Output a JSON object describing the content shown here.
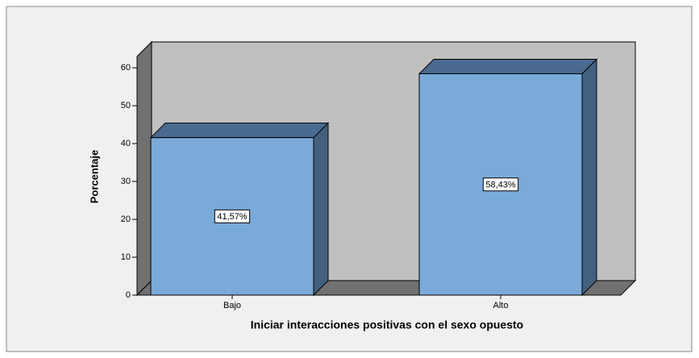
{
  "chart_data": {
    "type": "bar3d",
    "x_label": "Iniciar interacciones positivas con el sexo opuesto",
    "y_label": "Porcentaje",
    "categories": [
      "Bajo",
      "Alto"
    ],
    "values": [
      41.57,
      58.43
    ],
    "value_labels": [
      "41,57%",
      "58,43%"
    ],
    "color": "#7aaad8",
    "ylim": [
      0,
      63
    ],
    "yticks": [
      0,
      10,
      20,
      30,
      40,
      50,
      60
    ]
  }
}
